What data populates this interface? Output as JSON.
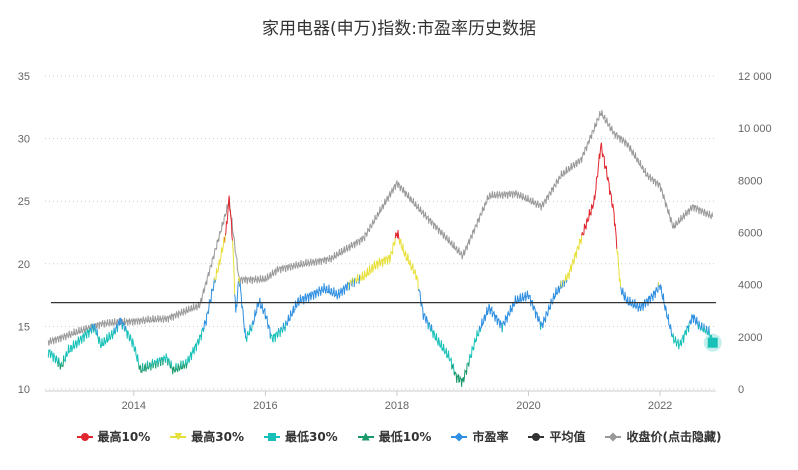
{
  "chart_data": {
    "type": "line",
    "title": "家用电器(申万)指数:市盈率历史数据",
    "x_ticks": [
      "2014",
      "2016",
      "2018",
      "2020",
      "2022"
    ],
    "xlim": [
      2012.65,
      2022.85
    ],
    "y_left": {
      "ylim": [
        10,
        35
      ],
      "ticks": [
        "10",
        "15",
        "20",
        "25",
        "30",
        "35"
      ]
    },
    "y_right": {
      "ylim": [
        0,
        12000
      ],
      "ticks": [
        "0",
        "2000",
        "4000",
        "6000",
        "8000",
        "10 000",
        "12 000"
      ]
    },
    "grid": true,
    "legend_placement": "bottom",
    "thresholds": {
      "top10": 22,
      "top30": 18.5,
      "bottom30": 14.8,
      "bottom10": 12
    },
    "average_pe": 16.9,
    "colors": {
      "top10": "#e0262e",
      "top30": "#e8e03a",
      "bottom30": "#18c1b8",
      "bottom10": "#1a9a6a",
      "pe": "#2f8fe0",
      "average": "#333333",
      "close": "#999999"
    },
    "series": [
      {
        "name": "市盈率",
        "axis": "left",
        "points": [
          [
            2012.7,
            13
          ],
          [
            2012.8,
            12.5
          ],
          [
            2012.9,
            11.8
          ],
          [
            2013.0,
            13
          ],
          [
            2013.2,
            14
          ],
          [
            2013.4,
            15
          ],
          [
            2013.5,
            13.5
          ],
          [
            2013.7,
            14.5
          ],
          [
            2013.8,
            15.5
          ],
          [
            2013.9,
            14.5
          ],
          [
            2014.0,
            13.5
          ],
          [
            2014.1,
            11.5
          ],
          [
            2014.3,
            12
          ],
          [
            2014.5,
            12.5
          ],
          [
            2014.6,
            11.5
          ],
          [
            2014.8,
            12
          ],
          [
            2014.9,
            13
          ],
          [
            2015.0,
            14
          ],
          [
            2015.1,
            15.5
          ],
          [
            2015.2,
            18
          ],
          [
            2015.3,
            20
          ],
          [
            2015.4,
            22.5
          ],
          [
            2015.45,
            25.3
          ],
          [
            2015.5,
            22
          ],
          [
            2015.55,
            16
          ],
          [
            2015.6,
            19
          ],
          [
            2015.7,
            14
          ],
          [
            2015.8,
            15
          ],
          [
            2015.9,
            17
          ],
          [
            2016.0,
            16
          ],
          [
            2016.1,
            14
          ],
          [
            2016.3,
            15
          ],
          [
            2016.5,
            17
          ],
          [
            2016.7,
            17.5
          ],
          [
            2016.9,
            18
          ],
          [
            2017.1,
            17.5
          ],
          [
            2017.3,
            18.5
          ],
          [
            2017.5,
            19
          ],
          [
            2017.7,
            20
          ],
          [
            2017.9,
            20.5
          ],
          [
            2018.0,
            22.5
          ],
          [
            2018.1,
            21
          ],
          [
            2018.3,
            19
          ],
          [
            2018.4,
            16
          ],
          [
            2018.6,
            14
          ],
          [
            2018.8,
            12.5
          ],
          [
            2018.9,
            11
          ],
          [
            2019.0,
            10.6
          ],
          [
            2019.2,
            14
          ],
          [
            2019.4,
            16.5
          ],
          [
            2019.6,
            15
          ],
          [
            2019.8,
            17
          ],
          [
            2020.0,
            17.5
          ],
          [
            2020.2,
            15
          ],
          [
            2020.4,
            17.5
          ],
          [
            2020.6,
            19
          ],
          [
            2020.8,
            22
          ],
          [
            2021.0,
            25
          ],
          [
            2021.1,
            29.5
          ],
          [
            2021.2,
            27
          ],
          [
            2021.3,
            24
          ],
          [
            2021.4,
            18
          ],
          [
            2021.5,
            17
          ],
          [
            2021.7,
            16.5
          ],
          [
            2021.9,
            17.5
          ],
          [
            2022.0,
            18.3
          ],
          [
            2022.1,
            16
          ],
          [
            2022.2,
            14
          ],
          [
            2022.3,
            13.5
          ],
          [
            2022.5,
            15.8
          ],
          [
            2022.6,
            15
          ],
          [
            2022.75,
            14.5
          ],
          [
            2022.8,
            13.7
          ]
        ]
      },
      {
        "name": "收盘价(点击隐藏)",
        "axis": "right",
        "points": [
          [
            2012.7,
            1800
          ],
          [
            2013.5,
            2500
          ],
          [
            2014.0,
            2600
          ],
          [
            2014.5,
            2700
          ],
          [
            2015.0,
            3200
          ],
          [
            2015.45,
            7200
          ],
          [
            2015.6,
            4200
          ],
          [
            2016.0,
            4200
          ],
          [
            2016.2,
            4600
          ],
          [
            2017.0,
            5000
          ],
          [
            2017.5,
            5800
          ],
          [
            2018.0,
            7900
          ],
          [
            2018.3,
            7000
          ],
          [
            2018.6,
            6200
          ],
          [
            2019.0,
            5100
          ],
          [
            2019.4,
            7400
          ],
          [
            2019.8,
            7500
          ],
          [
            2020.2,
            7000
          ],
          [
            2020.5,
            8200
          ],
          [
            2020.8,
            8800
          ],
          [
            2021.1,
            10600
          ],
          [
            2021.3,
            9800
          ],
          [
            2021.5,
            9400
          ],
          [
            2021.8,
            8200
          ],
          [
            2022.0,
            7800
          ],
          [
            2022.2,
            6200
          ],
          [
            2022.5,
            7000
          ],
          [
            2022.8,
            6600
          ]
        ]
      }
    ],
    "legend": [
      {
        "label": "最高10%",
        "key": "top10",
        "marker": "circle"
      },
      {
        "label": "最高30%",
        "key": "top30",
        "marker": "triangle-down"
      },
      {
        "label": "最低30%",
        "key": "bottom30",
        "marker": "square"
      },
      {
        "label": "最低10%",
        "key": "bottom10",
        "marker": "triangle"
      },
      {
        "label": "市盈率",
        "key": "pe",
        "marker": "diamond"
      },
      {
        "label": "平均值",
        "key": "average",
        "marker": "circle"
      },
      {
        "label": "收盘价(点击隐藏)",
        "key": "close",
        "marker": "diamond"
      }
    ]
  }
}
